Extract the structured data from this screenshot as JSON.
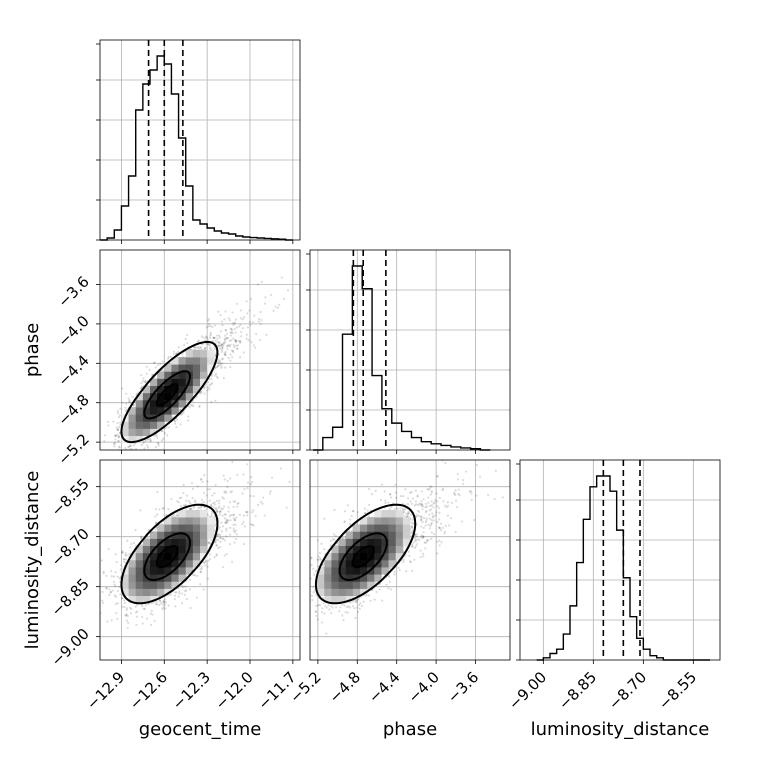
{
  "chart_data": {
    "type": "corner",
    "parameters": [
      "geocent_time",
      "phase",
      "luminosity_distance"
    ],
    "ranges": {
      "geocent_time": [
        -13.05,
        -11.65
      ],
      "phase": [
        -5.28,
        -3.25
      ],
      "luminosity_distance": [
        -9.07,
        -8.47
      ]
    },
    "ticks": {
      "geocent_time": [
        -12.9,
        -12.6,
        -12.3,
        -12.0,
        -11.7
      ],
      "phase": [
        -5.2,
        -4.8,
        -4.4,
        -4.0,
        -3.6
      ],
      "luminosity_distance": [
        -9.0,
        -8.85,
        -8.7,
        -8.55
      ]
    },
    "tick_labels": {
      "geocent_time": [
        "−12.9",
        "−12.6",
        "−12.3",
        "−12.0",
        "−11.7"
      ],
      "phase": [
        "−5.2",
        "−4.8",
        "−4.4",
        "−4.0",
        "−3.6"
      ],
      "luminosity_distance": [
        "−9.00",
        "−8.85",
        "−8.70",
        "−8.55"
      ]
    },
    "histograms": {
      "geocent_time": {
        "edges": [
          -13.05,
          -13.0,
          -12.95,
          -12.9,
          -12.85,
          -12.8,
          -12.75,
          -12.7,
          -12.65,
          -12.6,
          -12.55,
          -12.5,
          -12.45,
          -12.4,
          -12.35,
          -12.3,
          -12.25,
          -12.2,
          -12.15,
          -12.1,
          -12.05,
          -12.0,
          -11.95,
          -11.9,
          -11.85,
          -11.8,
          -11.75,
          -11.7
        ],
        "counts": [
          0.0,
          0.01,
          0.05,
          0.17,
          0.32,
          0.65,
          0.78,
          0.85,
          0.92,
          0.88,
          0.73,
          0.51,
          0.27,
          0.1,
          0.08,
          0.06,
          0.045,
          0.035,
          0.03,
          0.02,
          0.015,
          0.012,
          0.01,
          0.008,
          0.006,
          0.004,
          0.0
        ],
        "quantiles": [
          -12.71,
          -12.6,
          -12.47
        ]
      },
      "phase": {
        "edges": [
          -5.25,
          -5.15,
          -5.05,
          -4.95,
          -4.85,
          -4.75,
          -4.65,
          -4.55,
          -4.45,
          -4.35,
          -4.25,
          -4.15,
          -4.05,
          -3.95,
          -3.85,
          -3.75,
          -3.65,
          -3.55,
          -3.45
        ],
        "counts": [
          0.0,
          0.06,
          0.11,
          0.56,
          0.89,
          0.78,
          0.36,
          0.2,
          0.13,
          0.09,
          0.06,
          0.04,
          0.03,
          0.022,
          0.015,
          0.01,
          0.006,
          0.0
        ],
        "quantiles": [
          -4.84,
          -4.74,
          -4.51
        ]
      },
      "luminosity_distance": {
        "edges": [
          -9.02,
          -9.0,
          -8.98,
          -8.96,
          -8.94,
          -8.92,
          -8.9,
          -8.88,
          -8.86,
          -8.84,
          -8.82,
          -8.8,
          -8.78,
          -8.76,
          -8.74,
          -8.72,
          -8.7,
          -8.68,
          -8.66,
          -8.64,
          -8.62,
          -8.6,
          -8.58,
          -8.56,
          -8.54,
          -8.52,
          -8.5
        ],
        "counts": [
          0.0,
          0.01,
          0.03,
          0.05,
          0.12,
          0.25,
          0.45,
          0.65,
          0.8,
          0.85,
          0.85,
          0.78,
          0.6,
          0.38,
          0.2,
          0.1,
          0.05,
          0.02,
          0.01,
          0.0,
          0.0,
          0.0,
          0.0,
          0.0,
          0.0,
          0.0
        ],
        "quantiles": [
          -8.82,
          -8.76,
          -8.71
        ]
      }
    },
    "joint": [
      {
        "x": "geocent_time",
        "y": "phase",
        "center": [
          -12.58,
          -4.72
        ],
        "sigma": [
          0.16,
          0.24
        ],
        "corr": 0.78,
        "n_points": 2400
      },
      {
        "x": "geocent_time",
        "y": "luminosity_distance",
        "center": [
          -12.58,
          -8.76
        ],
        "sigma": [
          0.16,
          0.07
        ],
        "corr": 0.6,
        "n_points": 2400
      },
      {
        "x": "phase",
        "y": "luminosity_distance",
        "center": [
          -4.74,
          -8.76
        ],
        "sigma": [
          0.24,
          0.07
        ],
        "corr": 0.6,
        "n_points": 2400
      }
    ],
    "contour_levels_sigma": [
      1.0,
      2.0
    ],
    "grid": true
  }
}
